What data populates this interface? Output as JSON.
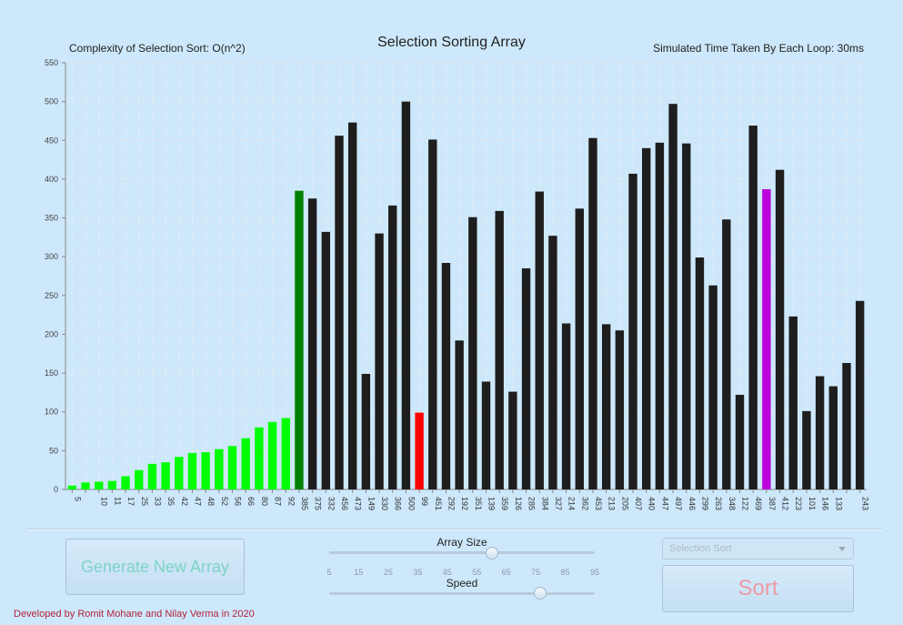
{
  "chart_data": {
    "type": "bar",
    "title": "Selection Sorting Array",
    "ylim": [
      0,
      550
    ],
    "yticks": [
      0,
      50,
      100,
      150,
      200,
      250,
      300,
      350,
      400,
      450,
      500,
      550
    ],
    "grid": true,
    "values": [
      5,
      9,
      10,
      11,
      17,
      25,
      33,
      35,
      42,
      47,
      48,
      52,
      56,
      66,
      80,
      87,
      92,
      385,
      375,
      332,
      456,
      473,
      149,
      330,
      366,
      500,
      99,
      451,
      292,
      192,
      351,
      139,
      359,
      126,
      285,
      384,
      327,
      214,
      362,
      453,
      213,
      205,
      407,
      440,
      447,
      497,
      446,
      299,
      263,
      348,
      122,
      469,
      387,
      412,
      223,
      101,
      146,
      133,
      163,
      243
    ],
    "xtick_labels": [
      "5",
      "",
      "10",
      "11",
      "17",
      "25",
      "33",
      "35",
      "42",
      "47",
      "48",
      "52",
      "56",
      "66",
      "80",
      "87",
      "92",
      "385",
      "375",
      "332",
      "456",
      "473",
      "149",
      "330",
      "366",
      "500",
      "99",
      "451",
      "292",
      "192",
      "351",
      "139",
      "359",
      "126",
      "285",
      "384",
      "327",
      "214",
      "362",
      "453",
      "213",
      "205",
      "407",
      "440",
      "447",
      "497",
      "446",
      "299",
      "263",
      "348",
      "122",
      "469",
      "387",
      "412",
      "223",
      "101",
      "146",
      "133",
      "",
      "243"
    ],
    "colors": {
      "sorted": "#00ff00",
      "current_min": "#008000",
      "compare": "#ff0000",
      "selected": "#bb00dd",
      "unsorted": "#1e1e1e"
    },
    "sorted_count": 17,
    "current_index": 17,
    "compare_index": 26,
    "selected_index": 52
  },
  "header": {
    "complexity": "Complexity of Selection Sort: O(n^2)",
    "time_taken": "Simulated Time Taken By Each Loop: 30ms"
  },
  "controls": {
    "generate_label": "Generate New Array",
    "array_size_label": "Array Size",
    "array_size_value": 60,
    "array_size_min": 5,
    "array_size_max": 95,
    "array_size_ticks": [
      "5",
      "15",
      "25",
      "35",
      "45",
      "55",
      "65",
      "75",
      "85",
      "95"
    ],
    "speed_label": "Speed",
    "speed_value_fraction": 0.79,
    "algorithm_selected": "Selection Sort",
    "sort_label": "Sort"
  },
  "footer": {
    "credit": "Developed by Romit Mohane and Nilay Verma in 2020"
  }
}
